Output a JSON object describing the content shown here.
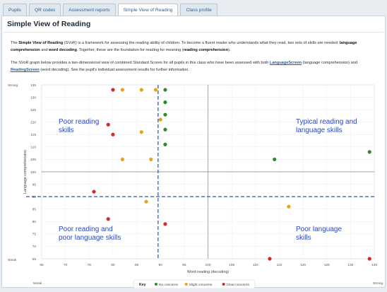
{
  "tabs": [
    {
      "label": "Pupils",
      "active": false
    },
    {
      "label": "QR codes",
      "active": false
    },
    {
      "label": "Assessment reports",
      "active": false
    },
    {
      "label": "Simple View of Reading",
      "active": true
    },
    {
      "label": "Class profile",
      "active": false
    }
  ],
  "page": {
    "title": "Simple View of Reading"
  },
  "intro": {
    "p1_a": "The ",
    "p1_b": "Simple View of Reading",
    "p1_c": " (SVoR) is a framework for assessing the reading ability of children. To become a fluent reader who understands what they read, two sets of skills are needed: ",
    "p1_d": "language comprehension",
    "p1_e": " and ",
    "p1_f": "word decoding",
    "p1_g": ". Together, these are the foundation for reading for meaning (",
    "p1_h": "reading comprehension",
    "p1_i": ").",
    "p2_a": "The SVoR graph below provides a two-dimensional view of combined Standard Scores for all pupils in this class who have been assessed with both ",
    "p2_link1": "LanguageScreen",
    "p2_b": " (language comprehension) and ",
    "p2_link2": "ReadingScreen",
    "p2_c": " (word decoding). See the pupil's individual assessment results for further information."
  },
  "chart_data": {
    "type": "scatter",
    "xlabel": "Word reading (decoding)",
    "ylabel": "Language comprehension",
    "x_ticks": [
      65,
      70,
      75,
      80,
      85,
      90,
      95,
      100,
      105,
      110,
      115,
      120,
      125,
      130,
      135
    ],
    "y_ticks": [
      65,
      70,
      75,
      80,
      85,
      90,
      95,
      100,
      105,
      110,
      115,
      120,
      125,
      130,
      135
    ],
    "xlim": [
      65,
      135
    ],
    "ylim": [
      65,
      135
    ],
    "x_axis_ends": {
      "low": "Weak",
      "high": "Strong"
    },
    "y_axis_ends": {
      "low": "Weak",
      "high": "Strong"
    },
    "center_lines": {
      "x": 100,
      "y": 100
    },
    "threshold_lines": {
      "x": 89.5,
      "y": 90
    },
    "quadrant_labels": {
      "top_left": [
        "Poor reading",
        "skills"
      ],
      "top_right": [
        "Typical reading and",
        "language skills"
      ],
      "bottom_left": [
        "Poor reading and",
        "poor language skills"
      ],
      "bottom_right": [
        "Poor language",
        "skills"
      ]
    },
    "legend_title": "Key",
    "series": [
      {
        "name": "No concerns",
        "color": "#2e8b2e",
        "points": [
          [
            91,
            133
          ],
          [
            91,
            128
          ],
          [
            91,
            123
          ],
          [
            91,
            117
          ],
          [
            91,
            111
          ],
          [
            114,
            105
          ],
          [
            134,
            108
          ]
        ]
      },
      {
        "name": "Slight concerns",
        "color": "#e8a317",
        "points": [
          [
            82,
            133
          ],
          [
            86,
            133
          ],
          [
            89,
            133
          ],
          [
            90,
            121
          ],
          [
            86,
            116
          ],
          [
            82,
            105
          ],
          [
            88,
            105
          ],
          [
            87,
            88
          ],
          [
            117,
            86
          ]
        ]
      },
      {
        "name": "Clear concerns",
        "color": "#d42a2a",
        "points": [
          [
            80,
            133
          ],
          [
            79,
            119
          ],
          [
            80,
            115
          ],
          [
            76,
            92
          ],
          [
            79,
            81
          ],
          [
            91,
            79
          ],
          [
            113,
            65
          ],
          [
            134,
            65
          ]
        ]
      }
    ]
  }
}
